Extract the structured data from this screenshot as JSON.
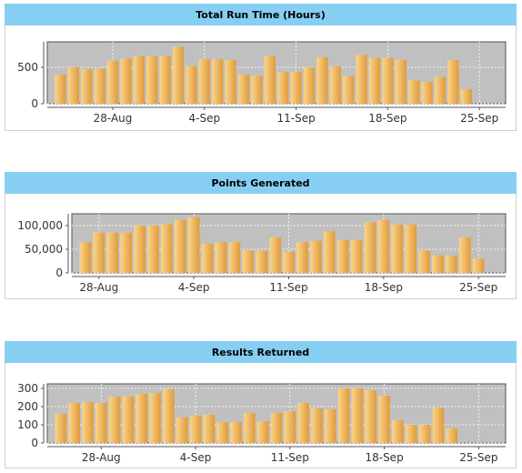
{
  "theme": {
    "header_bg": "#87cef3",
    "plot_bg": "#c0c0c0",
    "bar_light": "#fbd58a",
    "bar_dark": "#e09a3a"
  },
  "chart_data": [
    {
      "type": "bar",
      "title": "Total Run Time (Hours)",
      "xlabel": "",
      "ylabel": "",
      "ylim": [
        0,
        850
      ],
      "yticks": [
        0,
        500
      ],
      "grid": true,
      "date_ticks": [
        {
          "label": "28-Aug",
          "index": 4
        },
        {
          "label": "4-Sep",
          "index": 11
        },
        {
          "label": "11-Sep",
          "index": 18
        },
        {
          "label": "18-Sep",
          "index": 25
        },
        {
          "label": "25-Sep",
          "index": 32
        }
      ],
      "categories": [
        "24-Aug",
        "25-Aug",
        "26-Aug",
        "27-Aug",
        "28-Aug",
        "29-Aug",
        "30-Aug",
        "31-Aug",
        "1-Sep",
        "2-Sep",
        "3-Sep",
        "4-Sep",
        "5-Sep",
        "6-Sep",
        "7-Sep",
        "8-Sep",
        "9-Sep",
        "10-Sep",
        "11-Sep",
        "12-Sep",
        "13-Sep",
        "14-Sep",
        "15-Sep",
        "16-Sep",
        "17-Sep",
        "18-Sep",
        "19-Sep",
        "20-Sep",
        "21-Sep",
        "22-Sep",
        "23-Sep",
        "24-Sep",
        "25-Sep",
        "26-Sep"
      ],
      "values": [
        400,
        500,
        470,
        480,
        590,
        620,
        650,
        650,
        650,
        780,
        520,
        610,
        610,
        600,
        400,
        380,
        660,
        430,
        440,
        500,
        640,
        510,
        380,
        670,
        630,
        630,
        600,
        320,
        300,
        370,
        600,
        200,
        0,
        0
      ]
    },
    {
      "type": "bar",
      "title": "Points Generated",
      "xlabel": "",
      "ylabel": "",
      "ylim": [
        0,
        125000
      ],
      "yticks": [
        0,
        50000,
        100000
      ],
      "ytick_labels": [
        "0",
        "50,000",
        "100,000"
      ],
      "grid": true,
      "date_ticks": [
        {
          "label": "28-Aug",
          "index": 1
        },
        {
          "label": "4-Sep",
          "index": 8
        },
        {
          "label": "11-Sep",
          "index": 15
        },
        {
          "label": "18-Sep",
          "index": 22
        },
        {
          "label": "25-Sep",
          "index": 29
        }
      ],
      "categories": [
        "27-Aug",
        "28-Aug",
        "29-Aug",
        "30-Aug",
        "31-Aug",
        "1-Sep",
        "2-Sep",
        "3-Sep",
        "4-Sep",
        "5-Sep",
        "6-Sep",
        "7-Sep",
        "8-Sep",
        "9-Sep",
        "10-Sep",
        "11-Sep",
        "12-Sep",
        "13-Sep",
        "14-Sep",
        "15-Sep",
        "16-Sep",
        "17-Sep",
        "18-Sep",
        "19-Sep",
        "20-Sep",
        "21-Sep",
        "22-Sep",
        "23-Sep",
        "24-Sep",
        "25-Sep",
        "26-Sep"
      ],
      "values": [
        65000,
        85000,
        85000,
        85000,
        100000,
        100000,
        103000,
        112000,
        118000,
        62000,
        65000,
        65000,
        47000,
        47000,
        75000,
        45000,
        65000,
        68000,
        88000,
        70000,
        70000,
        107000,
        112000,
        102000,
        102000,
        47000,
        37000,
        37000,
        75000,
        30000,
        0
      ]
    },
    {
      "type": "bar",
      "title": "Results Returned",
      "xlabel": "",
      "ylabel": "",
      "ylim": [
        0,
        325
      ],
      "yticks": [
        0,
        100,
        200,
        300
      ],
      "grid": true,
      "date_ticks": [
        {
          "label": "28-Aug",
          "index": 3
        },
        {
          "label": "4-Sep",
          "index": 10
        },
        {
          "label": "11-Sep",
          "index": 17
        },
        {
          "label": "18-Sep",
          "index": 24
        },
        {
          "label": "25-Sep",
          "index": 31
        }
      ],
      "categories": [
        "25-Aug",
        "26-Aug",
        "27-Aug",
        "28-Aug",
        "29-Aug",
        "30-Aug",
        "31-Aug",
        "1-Sep",
        "2-Sep",
        "3-Sep",
        "4-Sep",
        "5-Sep",
        "6-Sep",
        "7-Sep",
        "8-Sep",
        "9-Sep",
        "10-Sep",
        "11-Sep",
        "12-Sep",
        "13-Sep",
        "14-Sep",
        "15-Sep",
        "16-Sep",
        "17-Sep",
        "18-Sep",
        "19-Sep",
        "20-Sep",
        "21-Sep",
        "22-Sep",
        "23-Sep",
        "24-Sep",
        "25-Sep",
        "26-Sep"
      ],
      "values": [
        160,
        220,
        225,
        220,
        255,
        255,
        270,
        275,
        295,
        140,
        150,
        155,
        115,
        115,
        165,
        120,
        165,
        175,
        220,
        190,
        185,
        300,
        300,
        290,
        260,
        125,
        100,
        100,
        195,
        80,
        0,
        0,
        0
      ]
    }
  ]
}
